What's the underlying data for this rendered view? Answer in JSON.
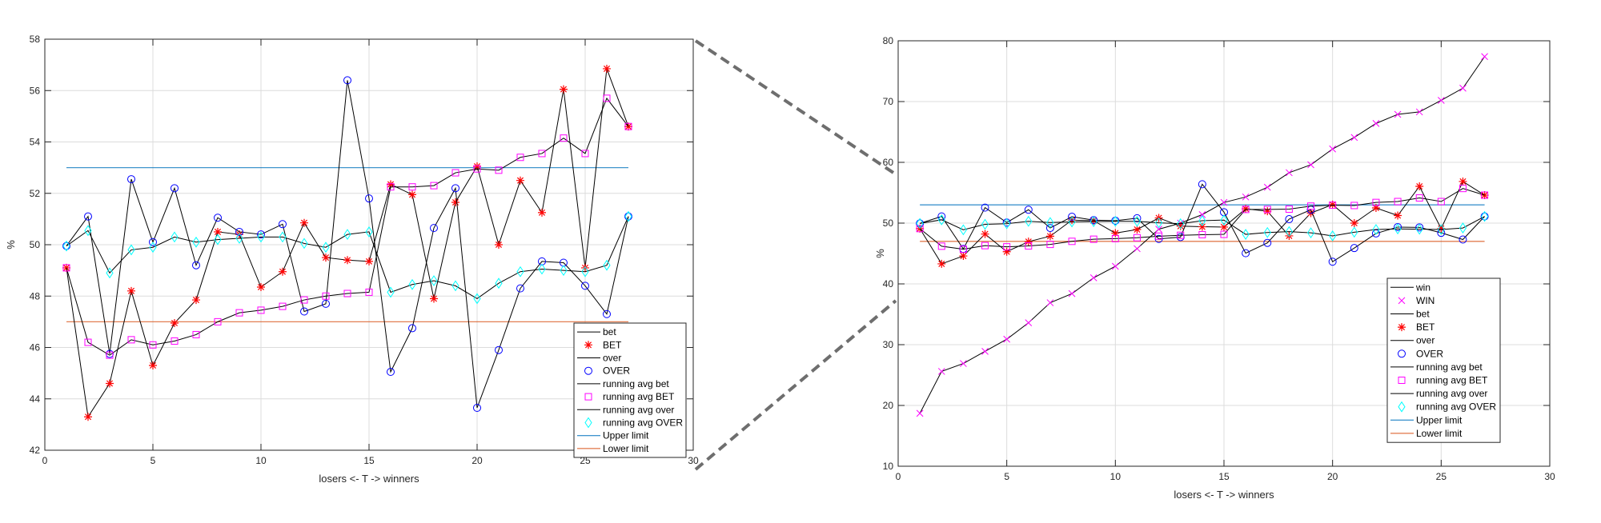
{
  "chart_data": [
    {
      "type": "line",
      "xlabel": "losers <- T -> winners",
      "ylabel": "%",
      "xlim": [
        0,
        30
      ],
      "ylim": [
        42,
        58
      ],
      "xticks": [
        0,
        5,
        10,
        15,
        20,
        25,
        30
      ],
      "yticks": [
        42,
        44,
        46,
        48,
        50,
        52,
        54,
        56,
        58
      ],
      "grid": true,
      "legend_position": "bottom-right",
      "x": [
        1,
        2,
        3,
        4,
        5,
        6,
        7,
        8,
        9,
        10,
        11,
        12,
        13,
        14,
        15,
        16,
        17,
        18,
        19,
        20,
        21,
        22,
        23,
        24,
        25,
        26,
        27
      ],
      "series": [
        {
          "name": "bet",
          "kind": "line",
          "data": "bet"
        },
        {
          "name": "BET",
          "kind": "marker",
          "marker": "star",
          "color": "#ff0000",
          "data": "bet"
        },
        {
          "name": "over",
          "kind": "line",
          "data": "over"
        },
        {
          "name": "OVER",
          "kind": "marker",
          "marker": "circle",
          "color": "#0000ff",
          "data": "over"
        },
        {
          "name": "running avg bet",
          "kind": "line",
          "data": "ravg_bet"
        },
        {
          "name": "running avg BET",
          "kind": "marker",
          "marker": "square",
          "color": "#ff00ff",
          "data": "ravg_bet"
        },
        {
          "name": "running avg over",
          "kind": "line",
          "data": "ravg_over"
        },
        {
          "name": "running avg OVER",
          "kind": "marker",
          "marker": "diamond",
          "color": "#00ffff",
          "data": "ravg_over"
        },
        {
          "name": "Upper limit",
          "kind": "hline",
          "value": 53,
          "color": "#0072bd"
        },
        {
          "name": "Lower limit",
          "kind": "hline",
          "value": 47,
          "color": "#d95319"
        }
      ]
    },
    {
      "type": "line",
      "xlabel": "losers <- T -> winners",
      "ylabel": "%",
      "xlim": [
        0,
        30
      ],
      "ylim": [
        10,
        80
      ],
      "xticks": [
        0,
        5,
        10,
        15,
        20,
        25,
        30
      ],
      "yticks": [
        10,
        20,
        30,
        40,
        50,
        60,
        70,
        80
      ],
      "grid": true,
      "legend_position": "bottom-right",
      "x": [
        1,
        2,
        3,
        4,
        5,
        6,
        7,
        8,
        9,
        10,
        11,
        12,
        13,
        14,
        15,
        16,
        17,
        18,
        19,
        20,
        21,
        22,
        23,
        24,
        25,
        26,
        27
      ],
      "series": [
        {
          "name": "win",
          "kind": "line",
          "data": "win"
        },
        {
          "name": "WIN",
          "kind": "marker",
          "marker": "x",
          "color": "#ff00ff",
          "data": "win"
        },
        {
          "name": "bet",
          "kind": "line",
          "data": "bet"
        },
        {
          "name": "BET",
          "kind": "marker",
          "marker": "star",
          "color": "#ff0000",
          "data": "bet"
        },
        {
          "name": "over",
          "kind": "line",
          "data": "over"
        },
        {
          "name": "OVER",
          "kind": "marker",
          "marker": "circle",
          "color": "#0000ff",
          "data": "over"
        },
        {
          "name": "running avg bet",
          "kind": "line",
          "data": "ravg_bet"
        },
        {
          "name": "running avg BET",
          "kind": "marker",
          "marker": "square",
          "color": "#ff00ff",
          "data": "ravg_bet"
        },
        {
          "name": "running avg over",
          "kind": "line",
          "data": "ravg_over"
        },
        {
          "name": "running avg OVER",
          "kind": "marker",
          "marker": "diamond",
          "color": "#00ffff",
          "data": "ravg_over"
        },
        {
          "name": "Upper limit",
          "kind": "hline",
          "value": 53,
          "color": "#0072bd"
        },
        {
          "name": "Lower limit",
          "kind": "hline",
          "value": 47,
          "color": "#d95319"
        }
      ]
    }
  ],
  "values": {
    "win": [
      18.7,
      25.6,
      26.9,
      28.9,
      30.9,
      33.6,
      36.9,
      38.4,
      41.0,
      42.9,
      45.8,
      49.0,
      50.0,
      51.4,
      53.4,
      54.3,
      55.9,
      58.3,
      59.6,
      62.2,
      64.1,
      66.4,
      67.9,
      68.3,
      70.2,
      72.2,
      77.4
    ],
    "bet": [
      49.1,
      43.3,
      44.6,
      48.2,
      45.3,
      46.95,
      47.85,
      50.5,
      50.4,
      48.35,
      48.95,
      50.85,
      49.5,
      49.4,
      49.35,
      52.35,
      51.95,
      47.9,
      51.65,
      53.05,
      50.0,
      52.5,
      51.25,
      56.05,
      49.1,
      56.85,
      54.6
    ],
    "over": [
      49.95,
      51.1,
      45.75,
      52.55,
      50.1,
      52.2,
      49.2,
      51.05,
      50.5,
      50.4,
      50.8,
      47.4,
      47.7,
      56.4,
      51.8,
      45.05,
      46.75,
      50.65,
      52.2,
      43.65,
      45.9,
      48.3,
      49.35,
      49.3,
      48.4,
      47.3,
      51.1
    ],
    "ravg_bet": [
      49.1,
      46.2,
      45.7,
      46.3,
      46.1,
      46.25,
      46.5,
      47.0,
      47.35,
      47.45,
      47.6,
      47.85,
      48.0,
      48.1,
      48.15,
      52.25,
      52.25,
      52.3,
      52.8,
      52.95,
      52.9,
      53.4,
      53.55,
      54.15,
      53.55,
      55.7,
      54.6
    ],
    "ravg_over": [
      49.95,
      50.55,
      48.9,
      49.8,
      49.9,
      50.3,
      50.1,
      50.2,
      50.25,
      50.3,
      50.3,
      50.05,
      49.9,
      50.4,
      50.5,
      48.15,
      48.45,
      48.6,
      48.4,
      47.9,
      48.5,
      48.95,
      49.05,
      49.0,
      48.95,
      49.2,
      51.1
    ]
  }
}
